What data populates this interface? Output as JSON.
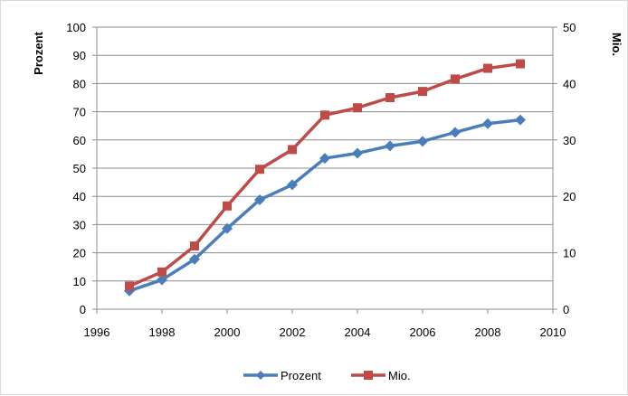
{
  "chart_data": {
    "type": "line",
    "title": "",
    "xlabel": "",
    "ylabel_left": "Prozent",
    "ylabel_right": "Mio.",
    "x": [
      1997,
      1998,
      1999,
      2000,
      2001,
      2002,
      2003,
      2004,
      2005,
      2006,
      2007,
      2008,
      2009
    ],
    "xlim": [
      1996,
      2010
    ],
    "xticks": [
      1996,
      1998,
      2000,
      2002,
      2004,
      2006,
      2008,
      2010
    ],
    "ylim_left": [
      0,
      100
    ],
    "yticks_left": [
      0,
      10,
      20,
      30,
      40,
      50,
      60,
      70,
      80,
      90,
      100
    ],
    "ylim_right": [
      0,
      50
    ],
    "yticks_right": [
      0,
      10,
      20,
      30,
      40,
      50
    ],
    "grid": true,
    "legend_position": "bottom",
    "series": [
      {
        "name": "Prozent",
        "axis": "left",
        "marker": "diamond",
        "color": "#4a7ebb",
        "values": [
          6.5,
          10.4,
          17.7,
          28.6,
          38.8,
          44.1,
          53.5,
          55.3,
          57.9,
          59.5,
          62.7,
          65.8,
          67.1
        ]
      },
      {
        "name": "Mio.",
        "axis": "right",
        "marker": "square",
        "color": "#be4b48",
        "values": [
          4.1,
          6.6,
          11.2,
          18.3,
          24.8,
          28.3,
          34.4,
          35.7,
          37.5,
          38.6,
          40.8,
          42.7,
          43.5
        ]
      }
    ]
  }
}
